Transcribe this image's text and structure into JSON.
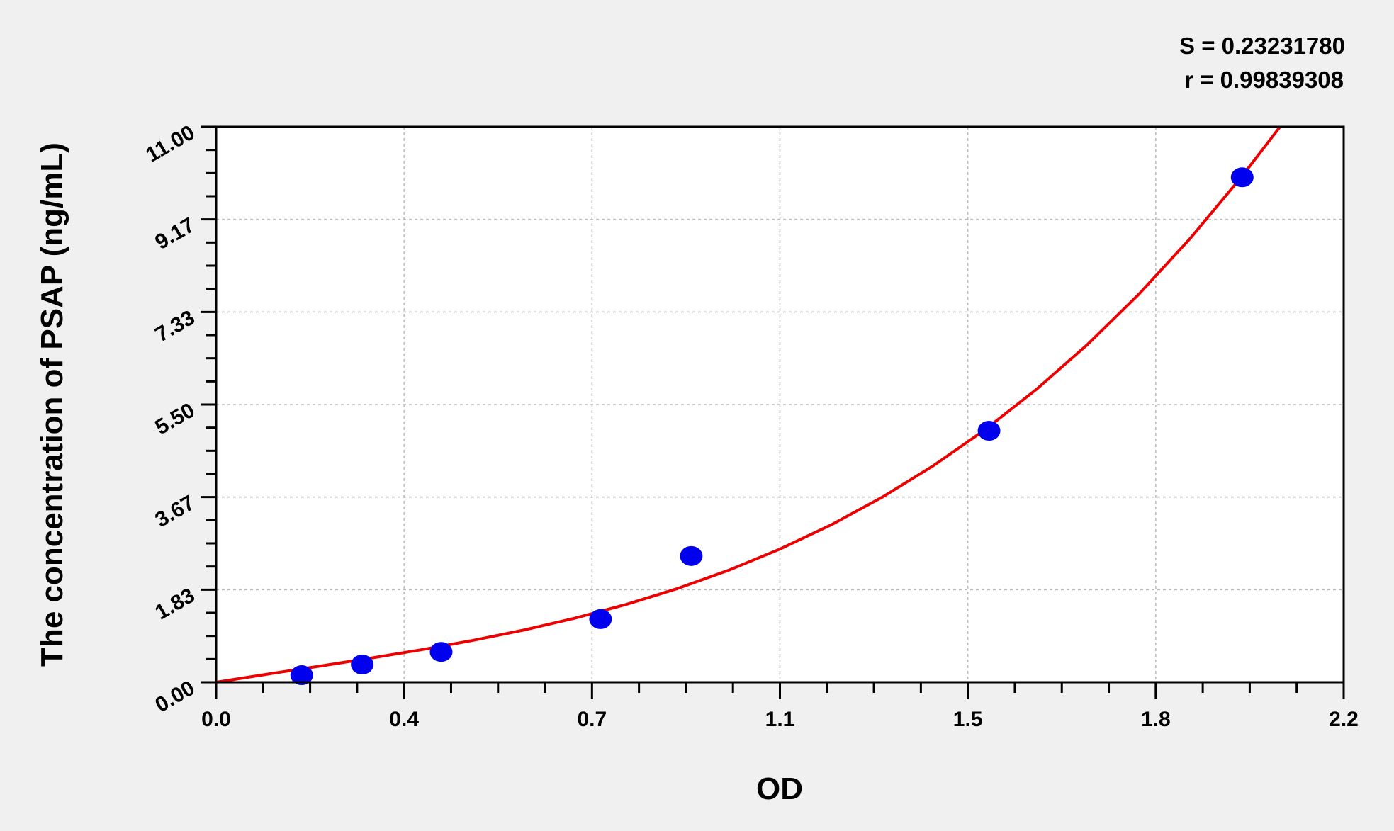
{
  "chart_data": {
    "type": "scatter",
    "title": "",
    "xlabel": "OD",
    "ylabel": "The concentration of PSAP (ng/mL)",
    "xlim": [
      0,
      2.2
    ],
    "ylim": [
      0,
      11
    ],
    "x_ticks": [
      "0.0",
      "0.4",
      "0.7",
      "1.1",
      "1.5",
      "1.8",
      "2.2"
    ],
    "y_ticks": [
      "0.00",
      "1.83",
      "3.67",
      "5.50",
      "7.33",
      "9.17",
      "11.00"
    ],
    "grid": true,
    "stats": {
      "s": "S = 0.23231780",
      "r": "r = 0.99839308"
    },
    "points": {
      "x": [
        0.167,
        0.285,
        0.439,
        0.75,
        0.927,
        1.508,
        2.002
      ],
      "y": [
        0.14,
        0.35,
        0.6,
        1.25,
        2.5,
        4.98,
        10.0
      ],
      "color": "#0000ee"
    },
    "fit_curve": {
      "color": "#ee0000",
      "x": [
        0,
        0.1,
        0.2,
        0.3,
        0.4,
        0.5,
        0.6,
        0.7,
        0.8,
        0.9,
        1.0,
        1.1,
        1.2,
        1.3,
        1.4,
        1.5,
        1.6,
        1.7,
        1.8,
        1.9,
        2.0,
        2.075
      ],
      "y": [
        0,
        0.16,
        0.316,
        0.475,
        0.643,
        0.827,
        1.033,
        1.269,
        1.541,
        1.855,
        2.218,
        2.637,
        3.117,
        3.667,
        4.293,
        5.0,
        5.797,
        6.688,
        7.681,
        8.783,
        10.0,
        10.99
      ]
    }
  }
}
